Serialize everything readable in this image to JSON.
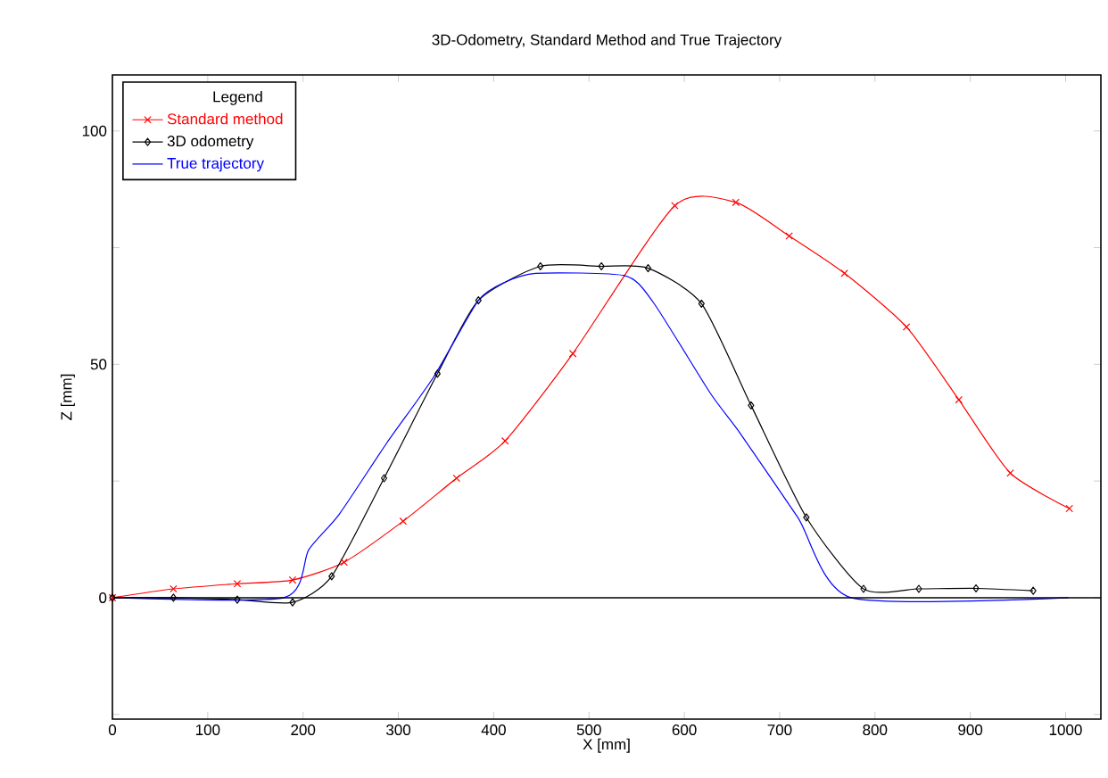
{
  "chart_data": {
    "type": "line",
    "title": "3D-Odometry, Standard Method and True Trajectory",
    "xlabel": "X [mm]",
    "ylabel": "Z [mm]",
    "legend_title": "Legend",
    "xlim": [
      0,
      1037
    ],
    "ylim": [
      -26,
      112
    ],
    "xticks": [
      0,
      100,
      200,
      300,
      400,
      500,
      600,
      700,
      800,
      900,
      1000
    ],
    "yticks": [
      {
        "value": -25,
        "label": null
      },
      0,
      {
        "value": 25,
        "label": null
      },
      50,
      {
        "value": 75,
        "label": null
      },
      100
    ],
    "grid": false,
    "legend": "top left",
    "line_style": "solid",
    "ref_lines": [
      {
        "axis": "y",
        "value": 0,
        "color": "#000000"
      }
    ],
    "series": [
      {
        "name": "Standard method",
        "color": "#ff0000",
        "marker": "cross",
        "x": [
          0,
          64,
          131,
          189,
          243,
          305,
          361,
          412,
          483,
          590,
          654,
          710,
          768,
          833,
          888,
          942,
          1004
        ],
        "values": [
          0,
          1.9,
          3.0,
          3.8,
          7.6,
          16.4,
          25.6,
          33.6,
          52.3,
          84,
          84.7,
          77.5,
          69.5,
          58,
          42.4,
          26.7,
          19.1
        ]
      },
      {
        "name": "3D odometry",
        "color": "#000000",
        "marker": "diamond",
        "x": [
          0,
          64,
          131,
          189,
          230,
          285,
          341,
          384,
          449,
          513,
          562,
          618,
          670,
          728,
          788,
          846,
          906,
          966
        ],
        "values": [
          0,
          0,
          -0.4,
          -1,
          4.6,
          25.6,
          48,
          63.7,
          71,
          71,
          70.6,
          63,
          41.2,
          17.2,
          1.9,
          1.9,
          2,
          1.5
        ]
      },
      {
        "name": "True trajectory",
        "color": "#0000ff",
        "marker": "none",
        "x": [
          0,
          180,
          206,
          238,
          288,
          337,
          384,
          412,
          444,
          537,
          567,
          627,
          659,
          719,
          775,
          1003
        ],
        "values": [
          0,
          0,
          10.3,
          17.9,
          33.2,
          47.3,
          63.7,
          67.6,
          69.5,
          69,
          63.4,
          43.9,
          35.1,
          17.2,
          0,
          0
        ]
      }
    ]
  }
}
